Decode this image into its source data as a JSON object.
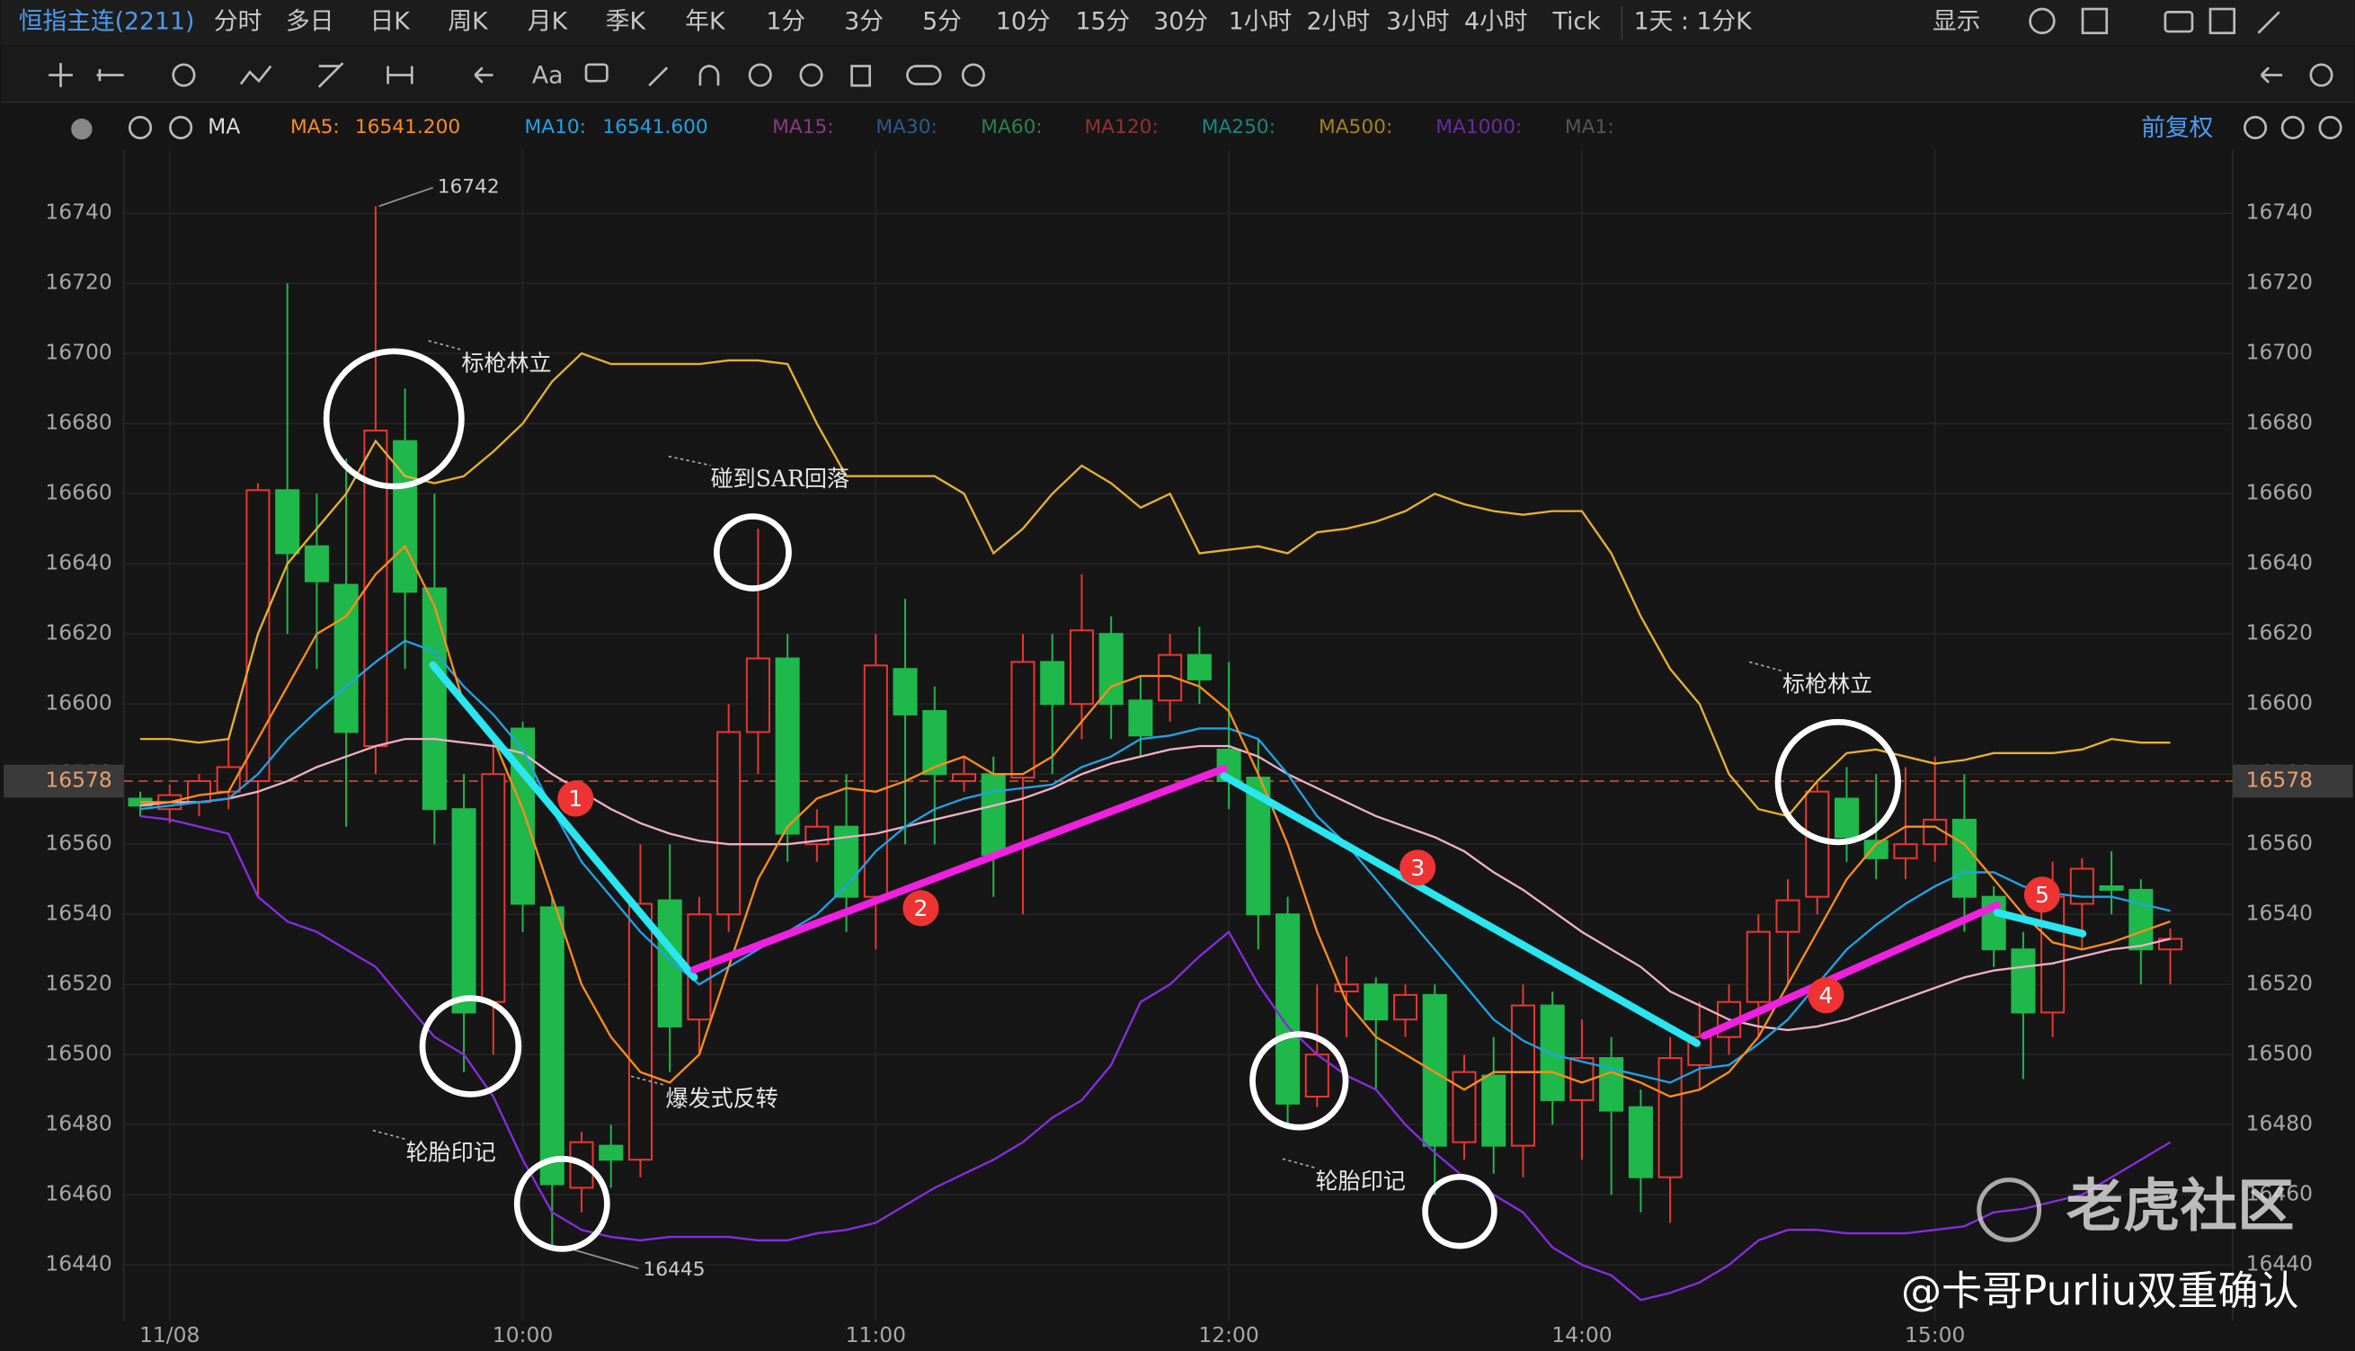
{
  "toolbar": {
    "symbol": "恒指主连(2211)",
    "periods": [
      "分时",
      "多日",
      "日K",
      "周K",
      "月K",
      "季K",
      "年K",
      "1分",
      "3分",
      "5分",
      "10分",
      "15分",
      "30分",
      "1小时",
      "2小时",
      "3小时",
      "4小时",
      "Tick"
    ],
    "active_period": "5分",
    "range": "1天 : 1分K",
    "display": "显示",
    "text_tool": "Aa",
    "indicator": "MA",
    "ma_legend": [
      {
        "name": "MA5:",
        "value": "16541.200",
        "color": "#ff8c1a"
      },
      {
        "name": "MA10:",
        "value": "16541.600",
        "color": "#1fa3e6"
      },
      {
        "name": "MA15:",
        "color": "#8a3a80"
      },
      {
        "name": "MA30:",
        "color": "#2c5a8c"
      },
      {
        "name": "MA60:",
        "color": "#2c8050"
      },
      {
        "name": "MA120:",
        "color": "#963030"
      },
      {
        "name": "MA250:",
        "color": "#1a8484"
      },
      {
        "name": "MA500:",
        "color": "#a8801a"
      },
      {
        "name": "MA1000:",
        "color": "#6a2c9a"
      },
      {
        "name": "MA1:",
        "color": "#555555"
      }
    ],
    "adjust": "前复权"
  },
  "chart_data": {
    "type": "candlestick",
    "up_color": "#e8372f",
    "down_color": "#1fb84b",
    "categories": [
      null,
      "11/08",
      null,
      null,
      null,
      null,
      null,
      null,
      null,
      null,
      null,
      null,
      null,
      "10:00",
      null,
      null,
      null,
      null,
      null,
      null,
      null,
      null,
      null,
      null,
      null,
      "11:00",
      null,
      null,
      null,
      null,
      null,
      null,
      null,
      null,
      null,
      null,
      null,
      "12:00",
      null,
      null,
      null,
      null,
      null,
      null,
      null,
      null,
      null,
      null,
      null,
      "14:00",
      null,
      null,
      null,
      null,
      null,
      null,
      null,
      null,
      null,
      null,
      null,
      "15:00",
      null,
      null,
      null,
      null,
      null,
      null,
      null,
      null
    ],
    "open": [
      16573,
      16570,
      16572,
      16575,
      16578,
      16661,
      16645,
      16634,
      16588,
      16675,
      16633,
      16570,
      16515,
      16593,
      16542,
      16462,
      16474,
      16470,
      16544,
      16510,
      16540,
      16592,
      16613,
      16560,
      16565,
      16545,
      16610,
      16598,
      16578,
      16580,
      16579,
      16612,
      16600,
      16620,
      16601,
      16601,
      16614,
      16587,
      16579,
      16540,
      16488,
      16518,
      16520,
      16510,
      16517,
      16475,
      16494,
      16474,
      16514,
      16487,
      16499,
      16485,
      16465,
      16497,
      16505,
      16515,
      16535,
      16545,
      16573,
      16561,
      16556,
      16560,
      16567,
      16545,
      16530,
      16512,
      16543,
      16548,
      16547,
      16530
    ],
    "high": [
      16575,
      16577,
      16580,
      16590,
      16663,
      16720,
      16660,
      16670,
      16742,
      16690,
      16660,
      16580,
      16590,
      16595,
      16545,
      16478,
      16480,
      16560,
      16560,
      16545,
      16600,
      16650,
      16620,
      16570,
      16580,
      16620,
      16630,
      16605,
      16585,
      16585,
      16620,
      16620,
      16637,
      16625,
      16608,
      16620,
      16622,
      16612,
      16590,
      16545,
      16520,
      16528,
      16522,
      16520,
      16520,
      16500,
      16505,
      16520,
      16518,
      16510,
      16505,
      16490,
      16505,
      16515,
      16520,
      16540,
      16550,
      16578,
      16582,
      16580,
      16582,
      16585,
      16580,
      16548,
      16535,
      16555,
      16556,
      16558,
      16550,
      16536
    ],
    "low": [
      16568,
      16566,
      16568,
      16570,
      16545,
      16620,
      16610,
      16565,
      16580,
      16610,
      16560,
      16495,
      16500,
      16535,
      16445,
      16455,
      16462,
      16465,
      16495,
      16500,
      16535,
      16580,
      16555,
      16555,
      16535,
      16530,
      16560,
      16560,
      16575,
      16545,
      16540,
      16580,
      16590,
      16590,
      16585,
      16595,
      16600,
      16570,
      16530,
      16480,
      16485,
      16505,
      16490,
      16505,
      16460,
      16470,
      16466,
      16465,
      16480,
      16470,
      16460,
      16455,
      16452,
      16490,
      16500,
      16505,
      16520,
      16540,
      16555,
      16550,
      16550,
      16555,
      16535,
      16525,
      16493,
      16505,
      16530,
      16540,
      16520,
      16520
    ],
    "close": [
      16571,
      16574,
      16578,
      16582,
      16661,
      16643,
      16635,
      16592,
      16678,
      16632,
      16570,
      16512,
      16580,
      16543,
      16463,
      16475,
      16470,
      16543,
      16508,
      16540,
      16592,
      16613,
      16563,
      16565,
      16545,
      16611,
      16597,
      16580,
      16580,
      16557,
      16612,
      16600,
      16621,
      16600,
      16591,
      16614,
      16607,
      16578,
      16540,
      16486,
      16500,
      16520,
      16510,
      16517,
      16474,
      16495,
      16474,
      16514,
      16487,
      16499,
      16484,
      16465,
      16499,
      16505,
      16515,
      16535,
      16544,
      16575,
      16562,
      16556,
      16560,
      16567,
      16545,
      16530,
      16512,
      16545,
      16553,
      16547,
      16530,
      16533
    ],
    "lines": [
      {
        "color": "#e8b030",
        "values": [
          16590,
          16590,
          16589,
          16590,
          16620,
          16640,
          16650,
          16660,
          16675,
          16665,
          16663,
          16665,
          16672,
          16680,
          16692,
          16700,
          16697,
          16697,
          16697,
          16697,
          16698,
          16698,
          16697,
          16680,
          16665,
          16665,
          16665,
          16665,
          16660,
          16643,
          16650,
          16660,
          16668,
          16663,
          16656,
          16660,
          16643,
          16644,
          16645,
          16643,
          16649,
          16650,
          16652,
          16655,
          16660,
          16657,
          16655,
          16654,
          16655,
          16655,
          16643,
          16625,
          16610,
          16600,
          16580,
          16570,
          16568,
          16578,
          16586,
          16587,
          16585,
          16583,
          16584,
          16586,
          16586,
          16586,
          16587,
          16590,
          16589,
          16589
        ]
      },
      {
        "color": "#8a2be2",
        "values": [
          16568,
          16567,
          16565,
          16563,
          16545,
          16538,
          16535,
          16530,
          16525,
          16515,
          16505,
          16500,
          16488,
          16470,
          16455,
          16450,
          16448,
          16447,
          16448,
          16448,
          16448,
          16447,
          16447,
          16449,
          16450,
          16452,
          16457,
          16462,
          16466,
          16470,
          16475,
          16482,
          16487,
          16497,
          16515,
          16520,
          16528,
          16535,
          16520,
          16508,
          16500,
          16494,
          16490,
          16480,
          16472,
          16465,
          16460,
          16455,
          16445,
          16440,
          16437,
          16430,
          16432,
          16435,
          16440,
          16447,
          16450,
          16450,
          16449,
          16449,
          16449,
          16450,
          16451,
          16455,
          16456,
          16458,
          16460,
          16465,
          16470,
          16475
        ]
      },
      {
        "color": "#f0b0c8",
        "values": [
          16571,
          16572,
          16572,
          16573,
          16575,
          16578,
          16582,
          16585,
          16588,
          16590,
          16590,
          16589,
          16588,
          16586,
          16580,
          16575,
          16570,
          16566,
          16563,
          16561,
          16560,
          16560,
          16560,
          16561,
          16562,
          16563,
          16565,
          16567,
          16569,
          16571,
          16573,
          16576,
          16580,
          16583,
          16585,
          16587,
          16588,
          16588,
          16585,
          16580,
          16576,
          16572,
          16568,
          16565,
          16562,
          16558,
          16552,
          16547,
          16541,
          16535,
          16530,
          16525,
          16518,
          16514,
          16510,
          16508,
          16507,
          16508,
          16510,
          16513,
          16516,
          16519,
          16522,
          16524,
          16525,
          16526,
          16528,
          16530,
          16531,
          16533
        ]
      },
      {
        "color": "#1fa3e6",
        "values": [
          16570,
          16571,
          16572,
          16573,
          16580,
          16590,
          16598,
          16605,
          16612,
          16618,
          16615,
          16605,
          16597,
          16587,
          16570,
          16555,
          16545,
          16535,
          16527,
          16520,
          16525,
          16530,
          16535,
          16540,
          16548,
          16558,
          16565,
          16570,
          16573,
          16575,
          16576,
          16577,
          16582,
          16585,
          16590,
          16591,
          16593,
          16593,
          16590,
          16580,
          16568,
          16560,
          16550,
          16540,
          16530,
          16520,
          16510,
          16504,
          16500,
          16498,
          16496,
          16494,
          16492,
          16496,
          16497,
          16503,
          16510,
          16520,
          16530,
          16537,
          16543,
          16548,
          16552,
          16552,
          16548,
          16546,
          16545,
          16545,
          16543,
          16541
        ]
      },
      {
        "color": "#ff8c1a",
        "values": [
          16572,
          16572,
          16574,
          16575,
          16590,
          16605,
          16620,
          16625,
          16637,
          16645,
          16628,
          16600,
          16590,
          16570,
          16545,
          16520,
          16505,
          16495,
          16492,
          16500,
          16525,
          16550,
          16565,
          16573,
          16576,
          16575,
          16578,
          16582,
          16585,
          16580,
          16580,
          16585,
          16595,
          16605,
          16608,
          16608,
          16605,
          16598,
          16580,
          16560,
          16535,
          16515,
          16505,
          16500,
          16495,
          16490,
          16495,
          16495,
          16495,
          16492,
          16495,
          16492,
          16488,
          16490,
          16495,
          16505,
          16520,
          16535,
          16550,
          16560,
          16565,
          16565,
          16560,
          16550,
          16540,
          16532,
          16530,
          16532,
          16535,
          16538
        ]
      }
    ],
    "ylim": [
      16424,
      16758
    ],
    "yticks": [
      16440,
      16460,
      16480,
      16500,
      16520,
      16540,
      16560,
      16580,
      16600,
      16620,
      16640,
      16660,
      16680,
      16700,
      16720,
      16740
    ],
    "grid": true,
    "current_price": 16578,
    "max_high": 16742,
    "min_low": 16445,
    "annotations": [
      "标枪林立",
      "碰到SAR回落",
      "爆发式反转",
      "轮胎印记",
      "轮胎印记",
      "标枪林立"
    ],
    "waves": [
      1,
      2,
      3,
      4,
      5
    ]
  },
  "watermark": "老虎社区",
  "credit": "@卡哥Purliu双重确认"
}
